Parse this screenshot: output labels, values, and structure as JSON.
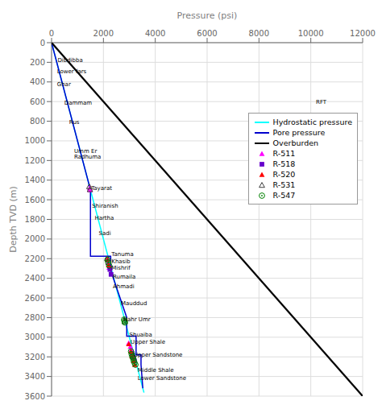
{
  "chart_data": {
    "type": "scatter",
    "x_label": "Pressure (psi)",
    "y_label": "Depth TVD (m)",
    "xlim": [
      0,
      12000
    ],
    "ylim": [
      3600,
      0
    ],
    "xticks": [
      0,
      2000,
      4000,
      6000,
      8000,
      10000,
      12000
    ],
    "yticks": [
      0,
      200,
      400,
      600,
      800,
      1000,
      1200,
      1400,
      1600,
      1800,
      2000,
      2200,
      2400,
      2600,
      2800,
      3000,
      3200,
      3400,
      3600
    ],
    "grid": true,
    "legend": "upper right",
    "series": [
      {
        "name": "Hydrostatic pressure",
        "type": "line",
        "color": "#00ffff",
        "x": [
          0,
          3564
        ],
        "values": [
          0,
          3564
        ]
      },
      {
        "name": "Pore pressure",
        "type": "line",
        "color": "#0000cd",
        "x": [
          0,
          1500,
          1500,
          2280,
          2280,
          2900,
          2900,
          3260,
          3260,
          3450,
          3450,
          3520
        ],
        "values": [
          0,
          1500,
          2175,
          2175,
          2320,
          2800,
          2990,
          2990,
          3180,
          3180,
          3280,
          3520
        ]
      },
      {
        "name": "Overburden",
        "type": "line",
        "color": "#000000",
        "x": [
          0,
          12000
        ],
        "values": [
          0,
          3600
        ]
      },
      {
        "name": "R-511",
        "type": "scatter",
        "color": "#ff00ff",
        "marker": "triangle",
        "x": [
          1470,
          1490,
          2150,
          2175,
          2220,
          2975,
          3040,
          3070,
          3110,
          3165,
          3200
        ],
        "values": [
          1480,
          1500,
          2195,
          2240,
          2290,
          3060,
          3095,
          3130,
          3170,
          3205,
          3240
        ]
      },
      {
        "name": "R-518",
        "type": "scatter",
        "color": "#6600cc",
        "marker": "square",
        "x": [
          2250,
          2295,
          3100,
          3145,
          3195
        ],
        "values": [
          2310,
          2360,
          3165,
          3205,
          3240
        ]
      },
      {
        "name": "R-520",
        "type": "scatter",
        "color": "#ff0000",
        "marker": "triangle",
        "x": [
          2155,
          2200,
          2980,
          3060,
          3100,
          3160,
          3210
        ],
        "values": [
          2210,
          2265,
          3070,
          3145,
          3190,
          3240,
          3280
        ]
      },
      {
        "name": "R-531",
        "type": "scatter",
        "color": "#404040",
        "marker": "open_triangle",
        "x": [
          1455,
          1480,
          2148,
          2820,
          3145
        ],
        "values": [
          1465,
          1495,
          2200,
          2840,
          3190
        ]
      },
      {
        "name": "R-547",
        "type": "scatter",
        "color": "#008000",
        "marker": "circle_dot",
        "x": [
          2160,
          2185,
          2220,
          2800,
          2812,
          2830,
          3065,
          3090,
          3120,
          3145,
          3170,
          3200,
          3235
        ],
        "values": [
          2210,
          2240,
          2270,
          2820,
          2835,
          2850,
          3145,
          3175,
          3200,
          3215,
          3240,
          3260,
          3280
        ]
      }
    ],
    "annotations": [
      {
        "text": "Dibdibba",
        "x": 230,
        "y": 155
      },
      {
        "text": "Lower fars",
        "x": 210,
        "y": 270
      },
      {
        "text": "Ghar",
        "x": 210,
        "y": 400
      },
      {
        "text": "Dammam",
        "x": 490,
        "y": 590
      },
      {
        "text": "Rus",
        "x": 680,
        "y": 790
      },
      {
        "text": "Umm Er\nRadhuma",
        "x": 870,
        "y": 1080
      },
      {
        "text": "Tayarat",
        "x": 1530,
        "y": 1460
      },
      {
        "text": "Shiranish",
        "x": 1560,
        "y": 1640
      },
      {
        "text": "Hartha",
        "x": 1660,
        "y": 1760
      },
      {
        "text": "Sadi",
        "x": 1820,
        "y": 1920
      },
      {
        "text": "Tanuma",
        "x": 2310,
        "y": 2130
      },
      {
        "text": "Khasib",
        "x": 2310,
        "y": 2210
      },
      {
        "text": "Mishrif",
        "x": 2310,
        "y": 2270
      },
      {
        "text": "Rumaila",
        "x": 2360,
        "y": 2360
      },
      {
        "text": "Ahmadi",
        "x": 2360,
        "y": 2460
      },
      {
        "text": "Mauddud",
        "x": 2670,
        "y": 2630
      },
      {
        "text": "Nahr Umr",
        "x": 2760,
        "y": 2800
      },
      {
        "text": "Shuaiba",
        "x": 3000,
        "y": 2950
      },
      {
        "text": "Upper Shale",
        "x": 3050,
        "y": 3030
      },
      {
        "text": "Upper Sandstone",
        "x": 3170,
        "y": 3155
      },
      {
        "text": "Middle Shale",
        "x": 3320,
        "y": 3310
      },
      {
        "text": "Lower Sandstone",
        "x": 3320,
        "y": 3395
      },
      {
        "text": "RFT",
        "x": 10200,
        "y": 580
      }
    ]
  }
}
